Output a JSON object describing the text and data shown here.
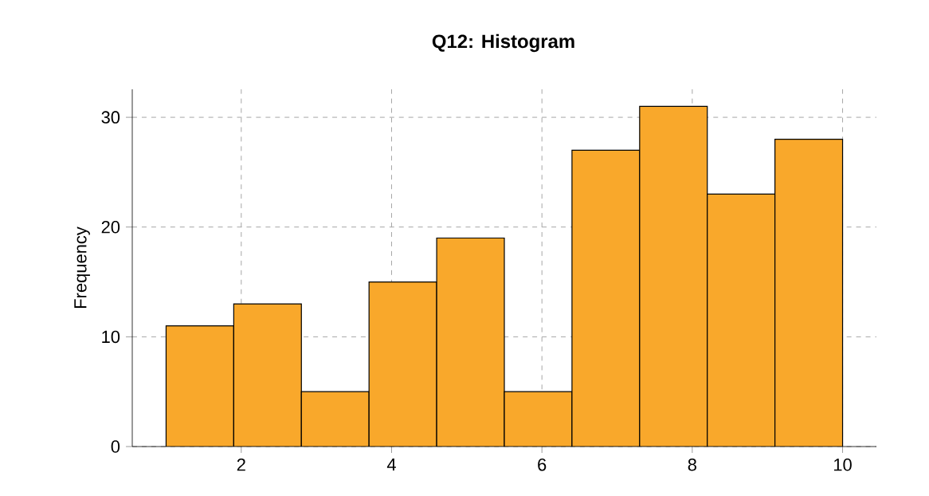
{
  "chart_data": {
    "type": "histogram",
    "title": "Q12: Histogram",
    "ylabel": "Frequency",
    "bins": [
      1,
      1.9,
      2.8,
      3.7,
      4.6,
      5.5,
      6.4,
      7.3,
      8.2,
      9.1,
      10
    ],
    "values": [
      11,
      13,
      5,
      15,
      19,
      5,
      27,
      31,
      23,
      28
    ],
    "color": "#f9a82b",
    "xlim": [
      0.55,
      10.45
    ],
    "ylim": [
      0,
      32.55
    ],
    "xticks": [
      2,
      4,
      6,
      8,
      10
    ],
    "yticks": [
      0,
      10,
      20,
      30
    ],
    "grid": true
  }
}
